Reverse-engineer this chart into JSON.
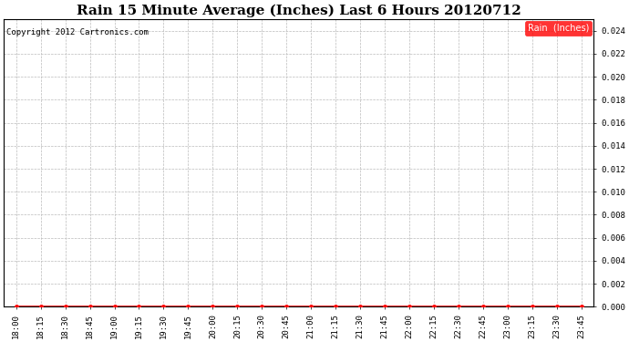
{
  "title": "Rain 15 Minute Average (Inches) Last 6 Hours 20120712",
  "copyright_text": "Copyright 2012 Cartronics.com",
  "legend_label": "Rain  (Inches)",
  "legend_bg_color": "#ff0000",
  "legend_text_color": "#ffffff",
  "x_labels": [
    "18:00",
    "18:15",
    "18:30",
    "18:45",
    "19:00",
    "19:15",
    "19:30",
    "19:45",
    "20:00",
    "20:15",
    "20:30",
    "20:45",
    "21:00",
    "21:15",
    "21:30",
    "21:45",
    "22:00",
    "22:15",
    "22:30",
    "22:45",
    "23:00",
    "23:15",
    "23:30",
    "23:45"
  ],
  "y_values": [
    0,
    0,
    0,
    0,
    0,
    0,
    0,
    0,
    0,
    0,
    0,
    0,
    0,
    0,
    0,
    0,
    0,
    0,
    0,
    0,
    0,
    0,
    0,
    0
  ],
  "ylim": [
    0,
    0.025
  ],
  "yticks": [
    0.0,
    0.002,
    0.004,
    0.006,
    0.008,
    0.01,
    0.012,
    0.014,
    0.016,
    0.018,
    0.02,
    0.022,
    0.024
  ],
  "line_color": "#ff0000",
  "marker": "o",
  "marker_size": 2.5,
  "grid_color": "#bbbbbb",
  "grid_linestyle": "--",
  "background_color": "#ffffff",
  "title_fontsize": 11,
  "tick_fontsize": 6.5,
  "copyright_fontsize": 6.5,
  "legend_fontsize": 7
}
